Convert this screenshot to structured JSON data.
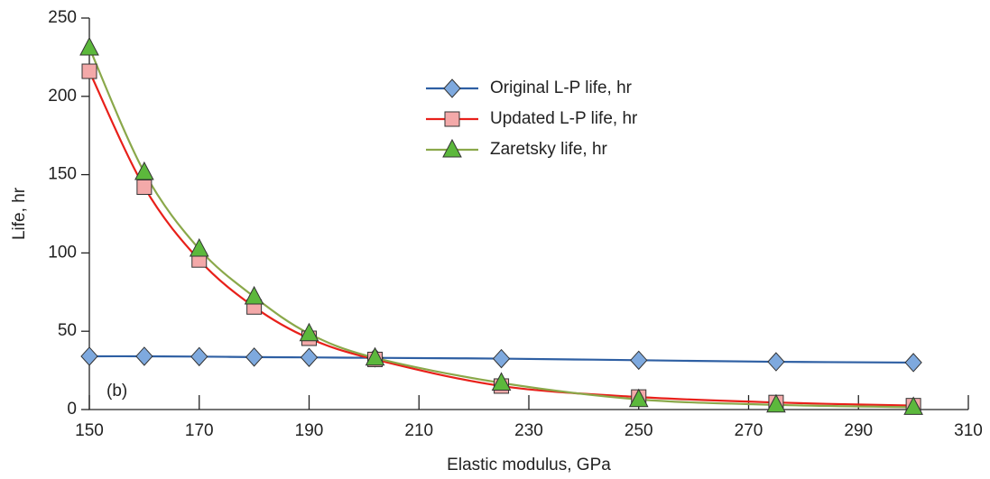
{
  "chart_data": {
    "type": "line",
    "x_label": "Elastic modulus, GPa",
    "y_label": "Life, hr",
    "annotation": "(b)",
    "x": [
      150,
      160,
      170,
      180,
      190,
      202,
      225,
      250,
      275,
      300
    ],
    "series": [
      {
        "name": "Original L-P life, hr",
        "color": "#2e5fa3",
        "marker": "diamond",
        "marker_color": "#7ea9de",
        "values": [
          34,
          34,
          33.8,
          33.5,
          33.3,
          33,
          32.5,
          31.5,
          30.5,
          30
        ]
      },
      {
        "name": "Updated L-P life, hr",
        "color": "#e8201a",
        "marker": "square",
        "marker_color": "#f3a9a9",
        "values": [
          216,
          142,
          95.5,
          65.5,
          45.5,
          32,
          15,
          8,
          4.5,
          2.5
        ]
      },
      {
        "name": "Zaretsky life, hr",
        "color": "#8aa84a",
        "marker": "triangle",
        "marker_color": "#5cb83c",
        "values": [
          231,
          151.5,
          102.5,
          72,
          48.5,
          33,
          17,
          6.5,
          3,
          1.5
        ]
      }
    ],
    "xlim": [
      150,
      310
    ],
    "xticks": [
      150,
      170,
      190,
      210,
      230,
      250,
      270,
      290,
      310
    ],
    "ylim": [
      0,
      250
    ],
    "yticks": [
      0,
      50,
      100,
      150,
      200,
      250
    ],
    "grid": false,
    "legend": "upper center"
  }
}
